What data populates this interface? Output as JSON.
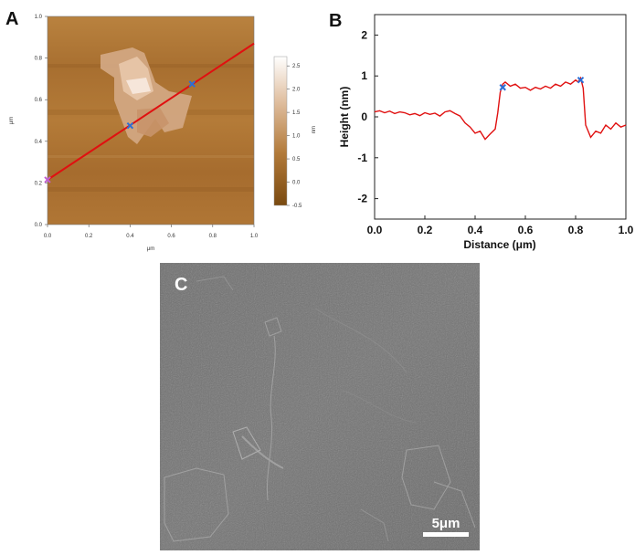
{
  "panels": {
    "a": "A",
    "b": "B",
    "c": "C"
  },
  "chart_data": [
    {
      "type": "heatmap",
      "panel": "A",
      "xlabel": "μm",
      "ylabel": "μm",
      "xlim": [
        0,
        1.0
      ],
      "ylim": [
        0,
        1.0
      ],
      "x_ticks": [
        "0.0",
        "0.2",
        "0.4",
        "0.6",
        "0.8",
        "1.0"
      ],
      "y_ticks": [
        "0.0",
        "0.2",
        "0.4",
        "0.6",
        "0.8",
        "1.0"
      ],
      "colorbar": {
        "label": "nm",
        "range": [
          -0.5,
          2.7
        ],
        "ticks": [
          "2.5",
          "2.0",
          "1.5",
          "1.0",
          "0.5",
          "0.0",
          "-0.5"
        ],
        "colors": [
          "#7a4a10",
          "#b27a3a",
          "#e0bfa0",
          "#ffffff"
        ]
      },
      "profile_line": {
        "x": [
          0.0,
          1.0
        ],
        "y": [
          0.215,
          0.87
        ],
        "color": "#e01010"
      },
      "markers": [
        {
          "x": 0.0,
          "y": 0.215,
          "color": "#c060d0"
        },
        {
          "x": 0.4,
          "y": 0.475,
          "color": "#2a6fd8"
        },
        {
          "x": 0.7,
          "y": 0.675,
          "color": "#2a6fd8"
        }
      ]
    },
    {
      "type": "line",
      "panel": "B",
      "xlabel": "Distance (μm)",
      "ylabel": "Height (nm)",
      "xlim": [
        0.0,
        1.0
      ],
      "ylim": [
        -2.5,
        2.5
      ],
      "x_ticks": [
        "0.0",
        "0.2",
        "0.4",
        "0.6",
        "0.8",
        "1.0"
      ],
      "y_ticks": [
        "2",
        "1",
        "0",
        "-1",
        "-2"
      ],
      "series": [
        {
          "color": "#e01010",
          "x": [
            0.0,
            0.02,
            0.04,
            0.06,
            0.08,
            0.1,
            0.12,
            0.14,
            0.16,
            0.18,
            0.2,
            0.22,
            0.24,
            0.26,
            0.28,
            0.3,
            0.32,
            0.34,
            0.36,
            0.38,
            0.4,
            0.42,
            0.44,
            0.46,
            0.48,
            0.49,
            0.5,
            0.51,
            0.52,
            0.54,
            0.56,
            0.58,
            0.6,
            0.62,
            0.64,
            0.66,
            0.68,
            0.7,
            0.72,
            0.74,
            0.76,
            0.78,
            0.8,
            0.81,
            0.82,
            0.83,
            0.84,
            0.86,
            0.88,
            0.9,
            0.92,
            0.94,
            0.96,
            0.98,
            1.0
          ],
          "y": [
            0.12,
            0.15,
            0.1,
            0.14,
            0.08,
            0.12,
            0.1,
            0.05,
            0.08,
            0.03,
            0.1,
            0.06,
            0.09,
            0.02,
            0.12,
            0.15,
            0.08,
            0.02,
            -0.15,
            -0.25,
            -0.4,
            -0.35,
            -0.55,
            -0.42,
            -0.3,
            0.1,
            0.6,
            0.8,
            0.85,
            0.75,
            0.8,
            0.7,
            0.72,
            0.65,
            0.72,
            0.68,
            0.75,
            0.7,
            0.8,
            0.75,
            0.85,
            0.8,
            0.9,
            0.85,
            0.95,
            0.7,
            -0.2,
            -0.5,
            -0.35,
            -0.4,
            -0.2,
            -0.3,
            -0.15,
            -0.25,
            -0.2
          ]
        }
      ],
      "markers": [
        {
          "x": 0.51,
          "y": 0.72,
          "color": "#2a6fd8"
        },
        {
          "x": 0.82,
          "y": 0.9,
          "color": "#2a6fd8"
        }
      ]
    }
  ],
  "sem_image": {
    "scale_bar_label": "5μm"
  }
}
